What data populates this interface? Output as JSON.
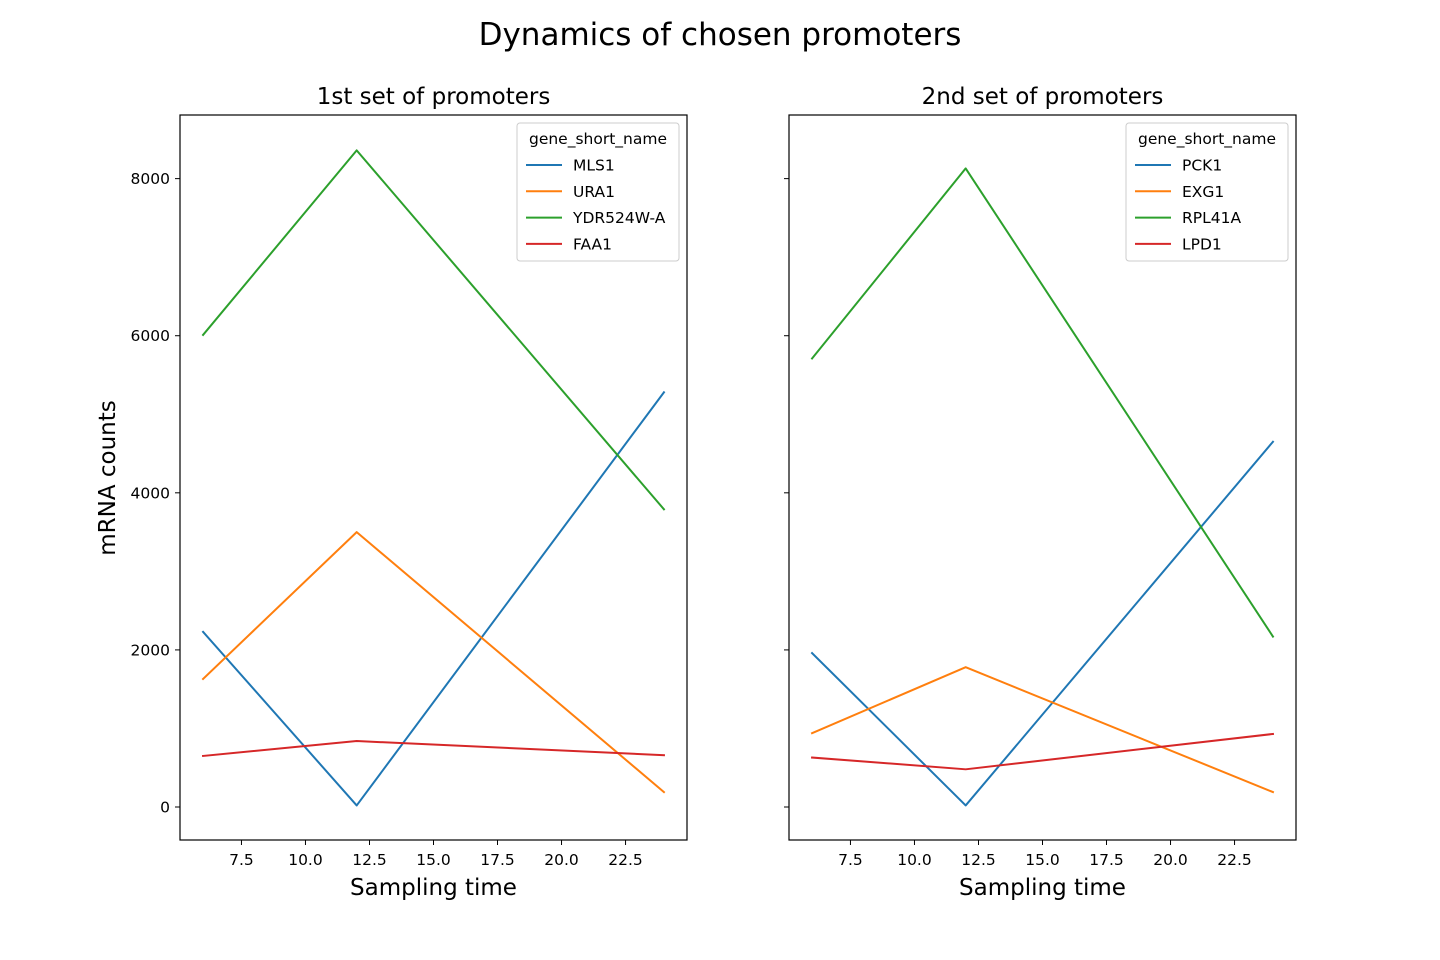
{
  "figure": {
    "title": "Dynamics of chosen promoters",
    "ylabel": "mRNA counts",
    "colors": [
      "#1f77b4",
      "#ff7f0e",
      "#2ca02c",
      "#d62728"
    ]
  },
  "chart_data": [
    {
      "type": "line",
      "title": "1st set of promoters",
      "xlabel": "Sampling time",
      "ylabel": "mRNA counts",
      "xlim": [
        5.1,
        24.9
      ],
      "ylim": [
        -420,
        8810
      ],
      "xticks": [
        7.5,
        10.0,
        12.5,
        15.0,
        17.5,
        20.0,
        22.5
      ],
      "xtick_labels": [
        "7.5",
        "10.0",
        "12.5",
        "15.0",
        "17.5",
        "20.0",
        "22.5"
      ],
      "yticks": [
        0,
        2000,
        4000,
        6000,
        8000
      ],
      "ytick_labels": [
        "0",
        "2000",
        "4000",
        "6000",
        "8000"
      ],
      "legend": {
        "title": "gene_short_name",
        "position": "top-right"
      },
      "x": [
        6,
        12,
        24
      ],
      "series": [
        {
          "name": "MLS1",
          "values": [
            2230,
            20,
            5280
          ]
        },
        {
          "name": "URA1",
          "values": [
            1630,
            3500,
            190
          ]
        },
        {
          "name": "YDR524W-A",
          "values": [
            6010,
            8360,
            3790
          ]
        },
        {
          "name": "FAA1",
          "values": [
            650,
            840,
            660
          ]
        }
      ]
    },
    {
      "type": "line",
      "title": "2nd set of promoters",
      "xlabel": "Sampling time",
      "ylabel": "",
      "xlim": [
        5.1,
        24.9
      ],
      "ylim": [
        -420,
        8810
      ],
      "xticks": [
        7.5,
        10.0,
        12.5,
        15.0,
        17.5,
        20.0,
        22.5
      ],
      "xtick_labels": [
        "7.5",
        "10.0",
        "12.5",
        "15.0",
        "17.5",
        "20.0",
        "22.5"
      ],
      "yticks": [
        0,
        2000,
        4000,
        6000,
        8000
      ],
      "ytick_labels": [],
      "legend": {
        "title": "gene_short_name",
        "position": "top-right"
      },
      "x": [
        6,
        12,
        24
      ],
      "series": [
        {
          "name": "PCK1",
          "values": [
            1960,
            20,
            4650
          ]
        },
        {
          "name": "EXG1",
          "values": [
            940,
            1780,
            190
          ]
        },
        {
          "name": "RPL41A",
          "values": [
            5710,
            8130,
            2170
          ]
        },
        {
          "name": "LPD1",
          "values": [
            630,
            480,
            930
          ]
        }
      ]
    }
  ]
}
